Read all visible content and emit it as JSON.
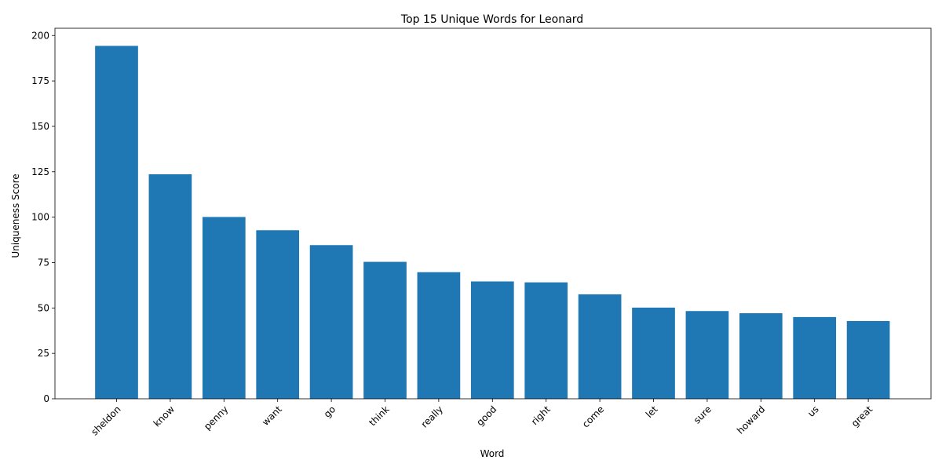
{
  "chart_data": {
    "type": "bar",
    "title": "Top 15 Unique Words for Leonard",
    "xlabel": "Word",
    "ylabel": "Uniqueness Score",
    "categories": [
      "sheldon",
      "know",
      "penny",
      "want",
      "go",
      "think",
      "really",
      "good",
      "right",
      "come",
      "let",
      "sure",
      "howard",
      "us",
      "great"
    ],
    "values": [
      194.3,
      123.6,
      100.1,
      92.8,
      84.6,
      75.4,
      69.7,
      64.6,
      64.1,
      57.5,
      50.2,
      48.3,
      47.1,
      45.0,
      42.8
    ],
    "ylim": [
      0,
      204
    ],
    "yticks": [
      0,
      25,
      50,
      75,
      100,
      125,
      150,
      175,
      200
    ],
    "grid": false,
    "bar_color": "#1f77b4",
    "x_tick_rotation_deg": 45
  }
}
